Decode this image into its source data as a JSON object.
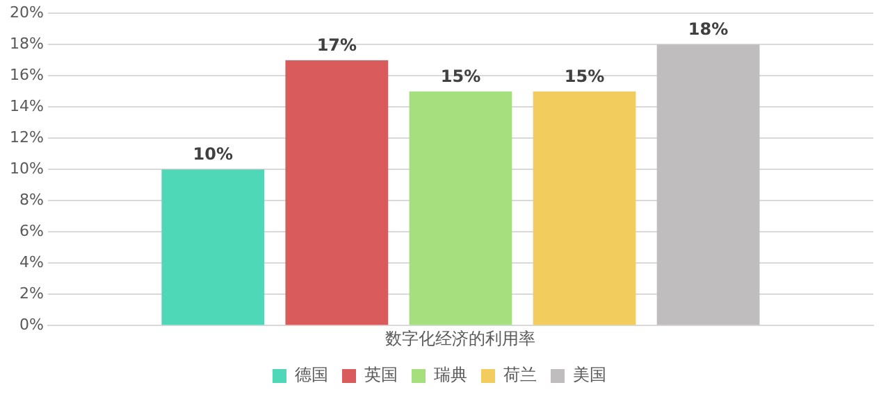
{
  "chart_data": {
    "type": "bar",
    "categories": [
      "数字化经济的利用率"
    ],
    "series": [
      {
        "name": "德国",
        "color": "#4fd8b8",
        "values": [
          10
        ],
        "value_labels": [
          "10%"
        ]
      },
      {
        "name": "英国",
        "color": "#d95b5b",
        "values": [
          17
        ],
        "value_labels": [
          "17%"
        ]
      },
      {
        "name": "瑞典",
        "color": "#a6e07e",
        "values": [
          15
        ],
        "value_labels": [
          "15%"
        ]
      },
      {
        "name": "荷兰",
        "color": "#f2cd5e",
        "values": [
          15
        ],
        "value_labels": [
          "15%"
        ]
      },
      {
        "name": "美国",
        "color": "#bfbdbd",
        "values": [
          18
        ],
        "value_labels": [
          "18%"
        ]
      }
    ],
    "ylim": [
      0,
      20
    ],
    "yticks": [
      {
        "value": 0,
        "label": "0%"
      },
      {
        "value": 2,
        "label": "2%"
      },
      {
        "value": 4,
        "label": "4%"
      },
      {
        "value": 6,
        "label": "6%"
      },
      {
        "value": 8,
        "label": "8%"
      },
      {
        "value": 10,
        "label": "10%"
      },
      {
        "value": 12,
        "label": "12%"
      },
      {
        "value": 14,
        "label": "14%"
      },
      {
        "value": 16,
        "label": "16%"
      },
      {
        "value": 18,
        "label": "18%"
      },
      {
        "value": 20,
        "label": "20%"
      }
    ],
    "grid": "y",
    "legend": "bottom"
  }
}
